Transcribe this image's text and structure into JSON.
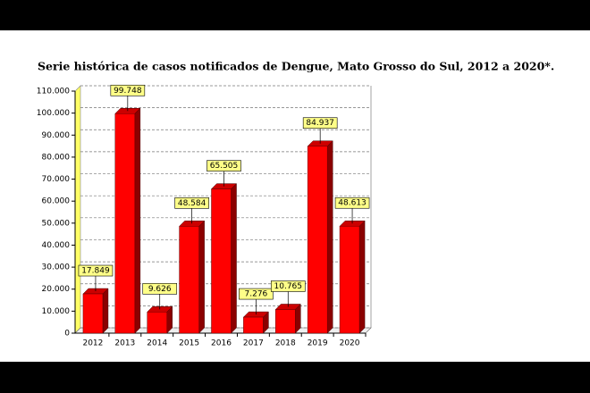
{
  "chart_data": {
    "type": "bar3d",
    "title": "Serie histórica de casos notificados de Dengue, Mato Grosso do Sul, 2012 a 2020*.",
    "categories": [
      "2012",
      "2013",
      "2014",
      "2015",
      "2016",
      "2017",
      "2018",
      "2019",
      "2020"
    ],
    "values": [
      17849,
      99748,
      9626,
      48584,
      65505,
      7276,
      10765,
      84937,
      48613
    ],
    "value_labels": [
      "17.849",
      "99.748",
      "9.626",
      "48.584",
      "65.505",
      "7.276",
      "10.765",
      "84.937",
      "48.613"
    ],
    "color": "#ff0000",
    "ylim": [
      0,
      110000
    ],
    "yticks": [
      0,
      {
        "value": 10000,
        "label": "10.000"
      },
      {
        "value": 20000,
        "label": "20.000"
      },
      {
        "value": 30000,
        "label": "30.000"
      },
      {
        "value": 40000,
        "label": "40.000"
      },
      {
        "value": 50000,
        "label": "50.000"
      },
      {
        "value": 60000,
        "label": "60.000"
      },
      {
        "value": 70000,
        "label": "70.000"
      },
      {
        "value": 80000,
        "label": "80.000"
      },
      {
        "value": 90000,
        "label": "90.000"
      },
      {
        "value": 100000,
        "label": "100.000"
      },
      {
        "value": 110000,
        "label": "110.000"
      }
    ],
    "grid": true
  }
}
